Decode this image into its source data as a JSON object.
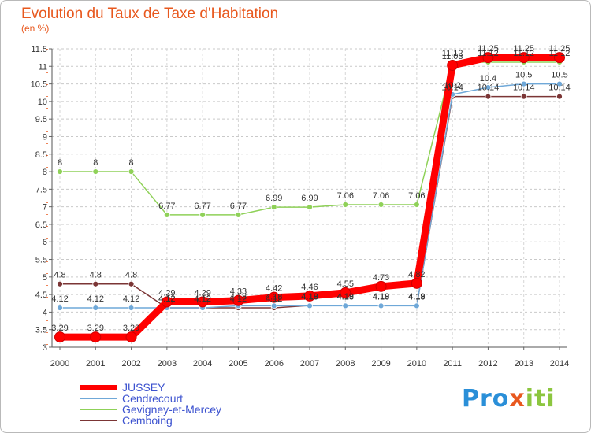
{
  "title": "Evolution du Taux de Taxe d'Habitation",
  "subtitle": "(en %)",
  "logo": {
    "p": "Pro",
    "x": "x",
    "i": "iti"
  },
  "chart_data": {
    "type": "line",
    "x": [
      "2000",
      "2001",
      "2002",
      "2003",
      "2004",
      "2005",
      "2006",
      "2007",
      "2008",
      "2009",
      "2010",
      "2011",
      "2012",
      "2013",
      "2014"
    ],
    "ylim": [
      3,
      11.5
    ],
    "yticks": [
      "3",
      "3.5",
      "4",
      "4.5",
      "5",
      "5.5",
      "6",
      "6.5",
      "7",
      "7.5",
      "8",
      "8.5",
      "9",
      "9.5",
      "10",
      "10.5",
      "11",
      "11.5"
    ],
    "grid": "y dashed",
    "legend_position": "bottom-left",
    "series": [
      {
        "name": "JUSSEY",
        "color": "#ff0000",
        "values": [
          3.29,
          3.29,
          3.29,
          4.29,
          4.29,
          4.33,
          4.42,
          4.46,
          4.55,
          4.73,
          4.82,
          11.03,
          11.25,
          11.25,
          11.25
        ],
        "labels": [
          "3.29",
          "3.29",
          "3.29",
          "4.29",
          "4.29",
          "4.33",
          "4.42",
          "4.46",
          "4.55",
          "4.73",
          "4.82",
          "11.03",
          "11.25",
          "11.25",
          "11.25"
        ]
      },
      {
        "name": "Cendrecourt",
        "color": "#6fa8d8",
        "values": [
          4.12,
          4.12,
          4.12,
          4.12,
          4.12,
          4.18,
          4.18,
          4.18,
          4.18,
          4.18,
          4.18,
          10.2,
          10.4,
          10.5,
          10.5
        ],
        "labels": [
          "4.12",
          "4.12",
          "4.12",
          "4.12",
          "4.12",
          "4.18",
          "4.18",
          "4.18",
          "4.18",
          "4.18",
          "4.18",
          "10.2",
          "10.4",
          "10.5",
          "10.5"
        ]
      },
      {
        "name": "Gevigney-et-Mercey",
        "color": "#8fd158",
        "values": [
          8,
          8,
          8,
          6.77,
          6.77,
          6.77,
          6.99,
          6.99,
          7.06,
          7.06,
          7.06,
          11.12,
          11.12,
          11.12,
          11.12
        ],
        "labels": [
          "8",
          "8",
          "8",
          "6.77",
          "6.77",
          "6.77",
          "6.99",
          "6.99",
          "7.06",
          "7.06",
          "7.06",
          "11.12",
          "11.12",
          "11.12",
          "11.12"
        ]
      },
      {
        "name": "Cemboing",
        "color": "#7b3535",
        "values": [
          4.8,
          4.8,
          4.8,
          4.12,
          4.12,
          4.12,
          4.12,
          4.19,
          4.19,
          4.19,
          4.19,
          10.14,
          10.14,
          10.14,
          10.14
        ],
        "labels": [
          "4.8",
          "4.8",
          "4.8",
          "4.12",
          "4.12",
          "4.12",
          "4.12",
          "4.19",
          "4.19",
          "4.19",
          "4.19",
          "10.14",
          "10.14",
          "10.14",
          "10.14"
        ]
      }
    ],
    "draw_order": [
      2,
      3,
      1,
      0
    ]
  }
}
